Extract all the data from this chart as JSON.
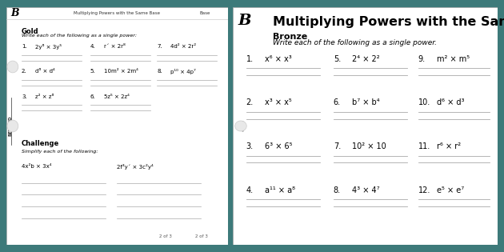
{
  "bg_color": "#3d7a7a",
  "page_bg": "#ffffff",
  "title": "Multiplying Powers with the Same Base",
  "left_page": {
    "header_center": "Multiplying Powers with the Same Base",
    "header_right": "Base",
    "logo_text": "B",
    "level": "Gold",
    "instruction": "Write each of the following as a single power:",
    "questions": [
      {
        "num": "1.",
        "expr": "2y⁶ × 3y⁵"
      },
      {
        "num": "2.",
        "expr": "d⁶ × d⁴"
      },
      {
        "num": "3.",
        "expr": "z² × z⁶"
      },
      {
        "num": "4.",
        "expr": "r´ × 2r⁸"
      },
      {
        "num": "5.",
        "expr": "10m² × 2m⁴"
      },
      {
        "num": "6.",
        "expr": "5z⁵ × 2z⁴"
      },
      {
        "num": "7.",
        "expr": "4d² × 2r²"
      },
      {
        "num": "8.",
        "expr": "p¹⁰ × 4p⁷"
      }
    ],
    "challenge_title": "Challenge",
    "challenge_instruction": "Simplify each of the following:",
    "challenge_q1": "4x²b × 3x⁴",
    "challenge_q2": "2f³y´ × 3c²y⁴",
    "page_num": "2 of 3",
    "page_num2": "2 of 3",
    "beyond_text": "BEYOND"
  },
  "right_page": {
    "logo_text": "B",
    "title": "Multiplying Powers with the Same Base",
    "level": "Bronze",
    "instruction": "Write each of the following as a single power.",
    "col1_questions": [
      {
        "num": "1.",
        "expr": "x⁶ × x³"
      },
      {
        "num": "2.",
        "expr": "x³ × x⁵"
      },
      {
        "num": "3.",
        "expr": "6³ × 6⁵"
      },
      {
        "num": "4.",
        "expr": "a¹¹ × a⁸"
      }
    ],
    "col2_questions": [
      {
        "num": "5.",
        "expr": "2⁴ × 2²"
      },
      {
        "num": "6.",
        "expr": "b⁷ × b⁴"
      },
      {
        "num": "7.",
        "expr": "10² × 10"
      },
      {
        "num": "8.",
        "expr": "4³ × 4⁷"
      }
    ],
    "col3_questions": [
      {
        "num": "9.",
        "expr": "m² × m⁵"
      },
      {
        "num": "10.",
        "expr": "d⁶ × d³"
      },
      {
        "num": "11.",
        "expr": "r⁶ × r²"
      },
      {
        "num": "12.",
        "expr": "e⁵ × e⁷"
      }
    ]
  }
}
